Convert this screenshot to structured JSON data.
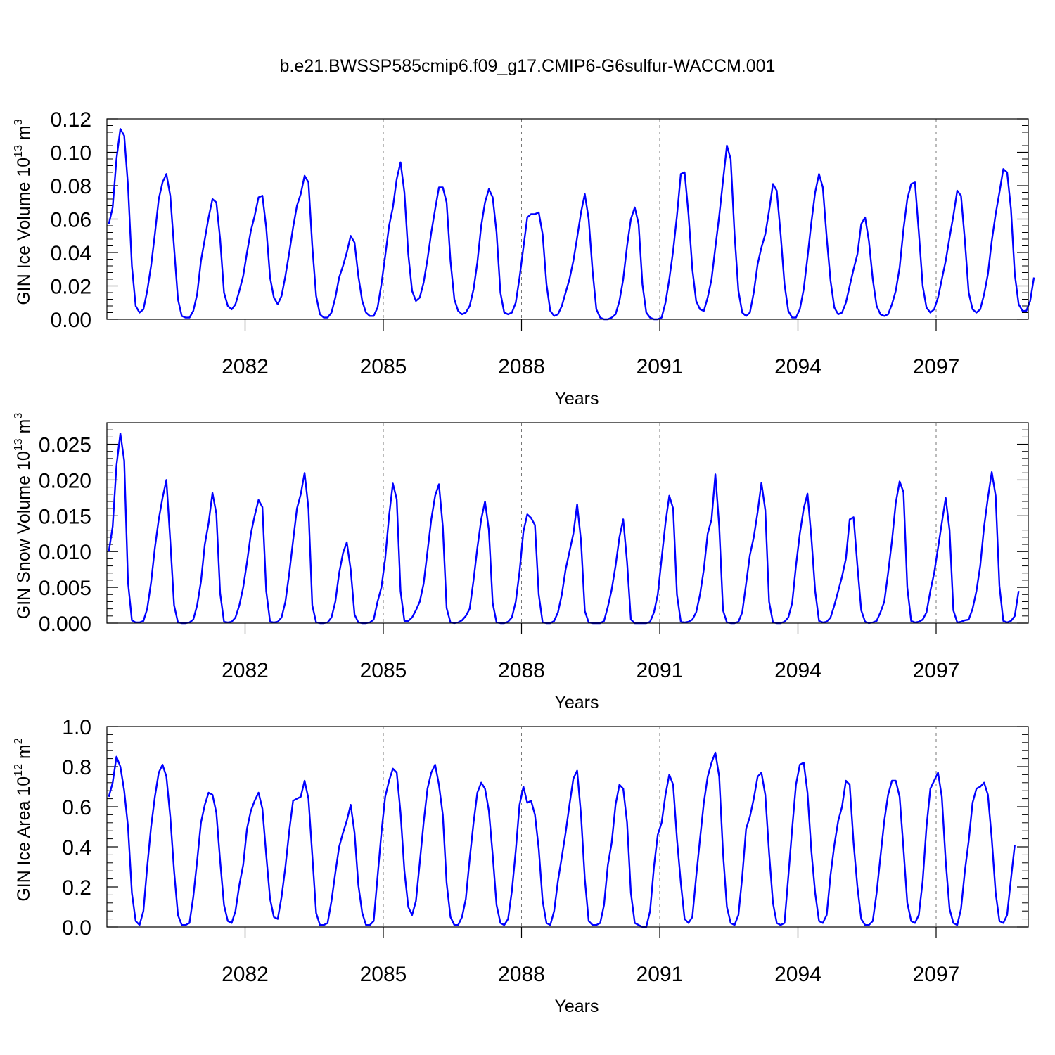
{
  "title": "b.e21.BWSSP585cmip6.f09_g17.CMIP6-G6sulfur-WACCM.001",
  "line_color": "#0000ff",
  "chart_data": [
    {
      "type": "line",
      "xlabel": "Years",
      "ylabel": {
        "text": "GIN Ice Volume 10",
        "exp": "13",
        "unit": " m",
        "unit_exp": "3"
      },
      "xlim": [
        2079.0,
        2099.0
      ],
      "ylim": [
        0.0,
        0.12
      ],
      "xticks": [
        2082,
        2085,
        2088,
        2091,
        2094,
        2097
      ],
      "xtick_labels": [
        "2082",
        "2085",
        "2088",
        "2091",
        "2094",
        "2097"
      ],
      "yticks": [
        0.0,
        0.02,
        0.04,
        0.06,
        0.08,
        0.1,
        0.12
      ],
      "ytick_labels": [
        "0.00",
        "0.02",
        "0.04",
        "0.06",
        "0.08",
        "0.10",
        "0.12"
      ],
      "grid": "vertical-dashed-at-major-ticks",
      "x_start": 2079.0417,
      "x_step": 0.08333,
      "values": [
        0.057,
        0.067,
        0.096,
        0.114,
        0.11,
        0.08,
        0.032,
        0.008,
        0.004,
        0.006,
        0.017,
        0.032,
        0.051,
        0.072,
        0.082,
        0.087,
        0.074,
        0.043,
        0.012,
        0.002,
        0.001,
        0.001,
        0.005,
        0.015,
        0.035,
        0.048,
        0.061,
        0.072,
        0.07,
        0.048,
        0.016,
        0.008,
        0.006,
        0.009,
        0.017,
        0.026,
        0.04,
        0.053,
        0.062,
        0.073,
        0.074,
        0.055,
        0.025,
        0.013,
        0.009,
        0.014,
        0.026,
        0.04,
        0.055,
        0.068,
        0.075,
        0.086,
        0.082,
        0.044,
        0.014,
        0.003,
        0.001,
        0.001,
        0.004,
        0.013,
        0.025,
        0.032,
        0.04,
        0.05,
        0.046,
        0.026,
        0.011,
        0.004,
        0.002,
        0.002,
        0.007,
        0.021,
        0.038,
        0.056,
        0.067,
        0.084,
        0.094,
        0.076,
        0.039,
        0.017,
        0.011,
        0.013,
        0.022,
        0.036,
        0.052,
        0.066,
        0.079,
        0.079,
        0.07,
        0.035,
        0.012,
        0.005,
        0.003,
        0.004,
        0.008,
        0.018,
        0.034,
        0.056,
        0.07,
        0.078,
        0.073,
        0.052,
        0.016,
        0.004,
        0.003,
        0.004,
        0.01,
        0.025,
        0.043,
        0.061,
        0.063,
        0.063,
        0.064,
        0.051,
        0.021,
        0.005,
        0.002,
        0.003,
        0.008,
        0.016,
        0.024,
        0.035,
        0.049,
        0.064,
        0.075,
        0.06,
        0.029,
        0.006,
        0.001,
        0.0,
        0.0,
        0.001,
        0.003,
        0.011,
        0.024,
        0.044,
        0.06,
        0.067,
        0.057,
        0.021,
        0.004,
        0.001,
        0.0,
        0.0,
        0.001,
        0.01,
        0.024,
        0.041,
        0.062,
        0.087,
        0.088,
        0.063,
        0.03,
        0.011,
        0.006,
        0.005,
        0.013,
        0.024,
        0.043,
        0.062,
        0.083,
        0.104,
        0.096,
        0.051,
        0.017,
        0.004,
        0.002,
        0.004,
        0.016,
        0.033,
        0.043,
        0.051,
        0.065,
        0.081,
        0.077,
        0.051,
        0.021,
        0.005,
        0.001,
        0.001,
        0.006,
        0.018,
        0.037,
        0.058,
        0.076,
        0.087,
        0.079,
        0.049,
        0.023,
        0.007,
        0.003,
        0.004,
        0.01,
        0.02,
        0.03,
        0.039,
        0.057,
        0.061,
        0.047,
        0.024,
        0.008,
        0.003,
        0.002,
        0.003,
        0.009,
        0.017,
        0.031,
        0.054,
        0.072,
        0.081,
        0.082,
        0.052,
        0.02,
        0.007,
        0.004,
        0.006,
        0.013,
        0.024,
        0.035,
        0.049,
        0.062,
        0.077,
        0.074,
        0.047,
        0.016,
        0.006,
        0.004,
        0.006,
        0.015,
        0.027,
        0.047,
        0.063,
        0.076,
        0.09,
        0.088,
        0.066,
        0.027,
        0.009,
        0.005,
        0.005,
        0.011,
        0.025
      ]
    },
    {
      "type": "line",
      "xlabel": "Years",
      "ylabel": {
        "text": "GIN Snow Volume 10",
        "exp": "13",
        "unit": " m",
        "unit_exp": "3"
      },
      "xlim": [
        2079.0,
        2099.0
      ],
      "ylim": [
        0.0,
        0.028
      ],
      "xticks": [
        2082,
        2085,
        2088,
        2091,
        2094,
        2097
      ],
      "xtick_labels": [
        "2082",
        "2085",
        "2088",
        "2091",
        "2094",
        "2097"
      ],
      "yticks": [
        0.0,
        0.005,
        0.01,
        0.015,
        0.02,
        0.025
      ],
      "ytick_labels": [
        "0.000",
        "0.005",
        "0.010",
        "0.015",
        "0.020",
        "0.025"
      ],
      "grid": "vertical-dashed-at-major-ticks",
      "x_start": 2079.0417,
      "x_step": 0.08333,
      "values": [
        0.01,
        0.0135,
        0.022,
        0.0265,
        0.0227,
        0.0057,
        0.0004,
        0.0001,
        0.0001,
        0.0003,
        0.002,
        0.0057,
        0.0105,
        0.0145,
        0.0175,
        0.02,
        0.0115,
        0.0025,
        0.0001,
        0.0,
        0.0,
        0.0001,
        0.0005,
        0.0025,
        0.0058,
        0.011,
        0.014,
        0.0182,
        0.0153,
        0.0042,
        0.0002,
        0.0001,
        0.0002,
        0.0008,
        0.0025,
        0.005,
        0.0085,
        0.0125,
        0.015,
        0.0172,
        0.0162,
        0.0045,
        0.0002,
        0.0001,
        0.0002,
        0.0008,
        0.003,
        0.007,
        0.0115,
        0.016,
        0.018,
        0.021,
        0.016,
        0.0025,
        0.0001,
        0.0,
        0.0,
        0.0001,
        0.0008,
        0.003,
        0.007,
        0.0098,
        0.0113,
        0.0075,
        0.0012,
        0.0001,
        0.0,
        0.0,
        0.0001,
        0.0005,
        0.003,
        0.005,
        0.009,
        0.015,
        0.0195,
        0.0173,
        0.0045,
        0.0003,
        0.0003,
        0.0008,
        0.0018,
        0.003,
        0.0055,
        0.01,
        0.0145,
        0.0178,
        0.0194,
        0.0135,
        0.0021,
        0.0001,
        0.0,
        0.0001,
        0.0004,
        0.001,
        0.002,
        0.006,
        0.0105,
        0.0145,
        0.017,
        0.013,
        0.0028,
        0.0001,
        0.0,
        0.0,
        0.0002,
        0.0008,
        0.003,
        0.0072,
        0.0128,
        0.0152,
        0.0147,
        0.0137,
        0.004,
        0.0001,
        0.0,
        0.0,
        0.0003,
        0.0015,
        0.004,
        0.0075,
        0.01,
        0.0125,
        0.0166,
        0.0115,
        0.0017,
        0.0001,
        0.0,
        0.0,
        0.0,
        0.0003,
        0.0023,
        0.0047,
        0.008,
        0.012,
        0.0145,
        0.0085,
        0.0005,
        0.0,
        0.0,
        0.0,
        0.0,
        0.0002,
        0.0015,
        0.004,
        0.009,
        0.014,
        0.0178,
        0.016,
        0.004,
        0.0002,
        0.0001,
        0.0002,
        0.0005,
        0.0015,
        0.004,
        0.0075,
        0.0125,
        0.0145,
        0.0208,
        0.0135,
        0.0018,
        0.0001,
        0.0,
        0.0,
        0.0002,
        0.0015,
        0.0055,
        0.0095,
        0.012,
        0.0155,
        0.0196,
        0.0158,
        0.003,
        0.0001,
        0.0,
        0.0,
        0.0002,
        0.0008,
        0.0028,
        0.008,
        0.0125,
        0.016,
        0.0181,
        0.012,
        0.0045,
        0.0003,
        0.0001,
        0.0002,
        0.0008,
        0.0025,
        0.0045,
        0.0065,
        0.009,
        0.0145,
        0.0148,
        0.008,
        0.0018,
        0.0002,
        0.0,
        0.0001,
        0.0003,
        0.0015,
        0.003,
        0.007,
        0.0115,
        0.0168,
        0.0198,
        0.0183,
        0.005,
        0.0003,
        0.0001,
        0.0002,
        0.0005,
        0.0015,
        0.0045,
        0.007,
        0.0105,
        0.014,
        0.0175,
        0.013,
        0.0018,
        0.0001,
        0.0002,
        0.0004,
        0.0005,
        0.002,
        0.0045,
        0.008,
        0.0135,
        0.0175,
        0.0211,
        0.0178,
        0.0052,
        0.0003,
        0.0001,
        0.0003,
        0.001,
        0.0045
      ]
    },
    {
      "type": "line",
      "xlabel": "Years",
      "ylabel": {
        "text": "GIN Ice Area 10",
        "exp": "12",
        "unit": " m",
        "unit_exp": "2"
      },
      "xlim": [
        2079.0,
        2099.0
      ],
      "ylim": [
        0.0,
        1.0
      ],
      "xticks": [
        2082,
        2085,
        2088,
        2091,
        2094,
        2097
      ],
      "xtick_labels": [
        "2082",
        "2085",
        "2088",
        "2091",
        "2094",
        "2097"
      ],
      "yticks": [
        0.0,
        0.2,
        0.4,
        0.6,
        0.8,
        1.0
      ],
      "ytick_labels": [
        "0.0",
        "0.2",
        "0.4",
        "0.6",
        "0.8",
        "1.0"
      ],
      "grid": "vertical-dashed-at-major-ticks",
      "x_start": 2079.0417,
      "x_step": 0.08333,
      "values": [
        0.65,
        0.72,
        0.85,
        0.8,
        0.68,
        0.5,
        0.17,
        0.03,
        0.01,
        0.08,
        0.3,
        0.5,
        0.65,
        0.77,
        0.81,
        0.75,
        0.55,
        0.28,
        0.06,
        0.01,
        0.01,
        0.02,
        0.15,
        0.33,
        0.52,
        0.61,
        0.67,
        0.66,
        0.57,
        0.33,
        0.11,
        0.03,
        0.02,
        0.08,
        0.21,
        0.31,
        0.49,
        0.58,
        0.63,
        0.67,
        0.59,
        0.36,
        0.14,
        0.05,
        0.04,
        0.15,
        0.3,
        0.48,
        0.63,
        0.64,
        0.65,
        0.73,
        0.64,
        0.36,
        0.07,
        0.01,
        0.01,
        0.02,
        0.13,
        0.27,
        0.4,
        0.47,
        0.53,
        0.61,
        0.47,
        0.21,
        0.07,
        0.01,
        0.01,
        0.03,
        0.25,
        0.47,
        0.65,
        0.73,
        0.79,
        0.77,
        0.57,
        0.28,
        0.1,
        0.06,
        0.13,
        0.32,
        0.52,
        0.69,
        0.77,
        0.81,
        0.71,
        0.56,
        0.22,
        0.05,
        0.01,
        0.01,
        0.05,
        0.14,
        0.34,
        0.52,
        0.67,
        0.72,
        0.69,
        0.58,
        0.36,
        0.11,
        0.02,
        0.01,
        0.04,
        0.18,
        0.38,
        0.61,
        0.7,
        0.62,
        0.63,
        0.56,
        0.39,
        0.13,
        0.02,
        0.01,
        0.08,
        0.23,
        0.35,
        0.47,
        0.61,
        0.74,
        0.78,
        0.56,
        0.24,
        0.03,
        0.01,
        0.01,
        0.02,
        0.11,
        0.31,
        0.42,
        0.61,
        0.71,
        0.69,
        0.52,
        0.17,
        0.02,
        0.01,
        0.0,
        0.0,
        0.08,
        0.3,
        0.46,
        0.52,
        0.66,
        0.76,
        0.71,
        0.44,
        0.22,
        0.04,
        0.02,
        0.05,
        0.25,
        0.44,
        0.62,
        0.75,
        0.82,
        0.87,
        0.75,
        0.37,
        0.1,
        0.02,
        0.01,
        0.06,
        0.25,
        0.49,
        0.55,
        0.64,
        0.75,
        0.77,
        0.66,
        0.37,
        0.12,
        0.02,
        0.01,
        0.02,
        0.25,
        0.49,
        0.71,
        0.81,
        0.82,
        0.67,
        0.38,
        0.17,
        0.03,
        0.02,
        0.06,
        0.26,
        0.41,
        0.53,
        0.6,
        0.73,
        0.71,
        0.42,
        0.2,
        0.04,
        0.01,
        0.01,
        0.03,
        0.17,
        0.35,
        0.53,
        0.66,
        0.73,
        0.73,
        0.65,
        0.39,
        0.12,
        0.03,
        0.02,
        0.06,
        0.23,
        0.5,
        0.69,
        0.73,
        0.77,
        0.65,
        0.33,
        0.09,
        0.02,
        0.01,
        0.09,
        0.28,
        0.43,
        0.62,
        0.69,
        0.7,
        0.72,
        0.66,
        0.44,
        0.17,
        0.03,
        0.02,
        0.06,
        0.24,
        0.41
      ]
    }
  ]
}
